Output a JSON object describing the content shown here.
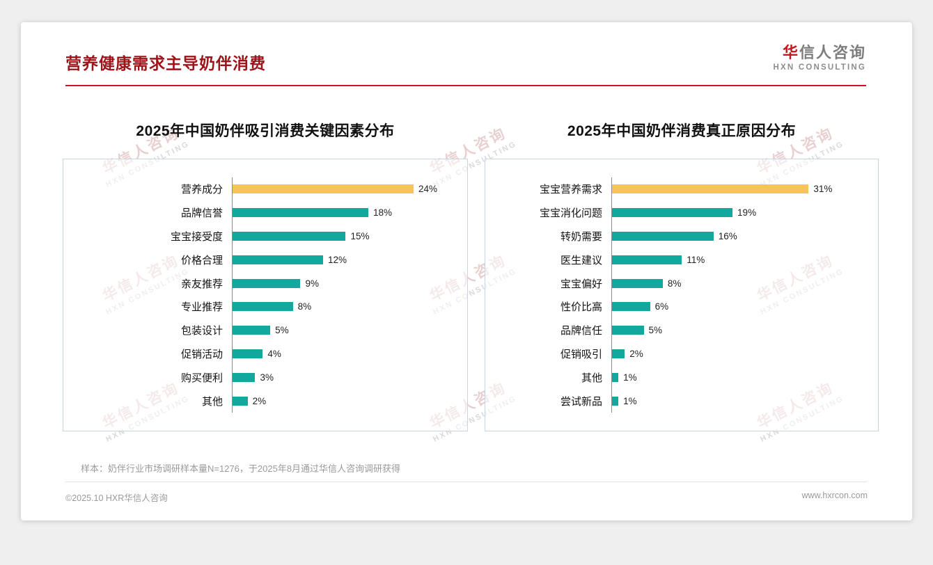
{
  "header": {
    "title": "营养健康需求主导奶伴消费"
  },
  "logo": {
    "cn_accent": "华",
    "cn_rest": "信人咨询",
    "en": "HXN CONSULTING"
  },
  "watermark": {
    "cn": "华信人咨询",
    "en": "HXN CONSULTING"
  },
  "colors": {
    "accent_red": "#c8161e",
    "bar_teal": "#12a89d",
    "bar_gold": "#f6c55a"
  },
  "chart_data": [
    {
      "type": "bar",
      "orientation": "horizontal",
      "title": "2025年中国奶伴吸引消费关键因素分布",
      "categories": [
        "营养成分",
        "品牌信誉",
        "宝宝接受度",
        "价格合理",
        "亲友推荐",
        "专业推荐",
        "包装设计",
        "促销活动",
        "购买便利",
        "其他"
      ],
      "values": [
        24,
        18,
        15,
        12,
        9,
        8,
        5,
        4,
        3,
        2
      ],
      "unit": "%",
      "highlight_index": 0,
      "highlight_color": "#f6c55a",
      "bar_color": "#12a89d",
      "value_labels_shown": true,
      "axis_line": true,
      "grid": false,
      "legend": false
    },
    {
      "type": "bar",
      "orientation": "horizontal",
      "title": "2025年中国奶伴消费真正原因分布",
      "categories": [
        "宝宝营养需求",
        "宝宝消化问题",
        "转奶需要",
        "医生建议",
        "宝宝偏好",
        "性价比高",
        "品牌信任",
        "促销吸引",
        "其他",
        "尝试新品"
      ],
      "values": [
        31,
        19,
        16,
        11,
        8,
        6,
        5,
        2,
        1,
        1
      ],
      "unit": "%",
      "highlight_index": 0,
      "highlight_color": "#f6c55a",
      "bar_color": "#12a89d",
      "value_labels_shown": true,
      "axis_line": true,
      "grid": false,
      "legend": false
    }
  ],
  "note": "样本：奶伴行业市场调研样本量N=1276，于2025年8月通过华信人咨询调研获得",
  "footer": {
    "left": "©2025.10 HXR华信人咨询",
    "right": "www.hxrcon.com"
  }
}
